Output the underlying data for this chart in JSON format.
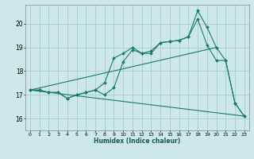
{
  "xlabel": "Humidex (Indice chaleur)",
  "bg_color": "#cce8e8",
  "grid_color": "#aacccc",
  "line_color": "#1a7a6e",
  "xlim": [
    -0.5,
    23.5
  ],
  "ylim": [
    15.5,
    20.8
  ],
  "xticks": [
    0,
    1,
    2,
    3,
    4,
    5,
    6,
    7,
    8,
    9,
    10,
    11,
    12,
    13,
    14,
    15,
    16,
    17,
    18,
    19,
    20,
    21,
    22,
    23
  ],
  "yticks": [
    16,
    17,
    18,
    19,
    20
  ],
  "series1_x": [
    0,
    1,
    2,
    3,
    4,
    5,
    6,
    7,
    8,
    9,
    10,
    11,
    12,
    13,
    14,
    15,
    16,
    17,
    18,
    19,
    20,
    21,
    22,
    23
  ],
  "series1_y": [
    17.2,
    17.2,
    17.1,
    17.1,
    16.85,
    17.0,
    17.1,
    17.2,
    17.5,
    18.55,
    18.75,
    19.0,
    18.75,
    18.85,
    19.2,
    19.25,
    19.3,
    19.45,
    20.55,
    19.85,
    19.0,
    18.45,
    16.65,
    16.1
  ],
  "series2_x": [
    0,
    1,
    2,
    3,
    4,
    5,
    6,
    7,
    8,
    9,
    10,
    11,
    12,
    13,
    14,
    15,
    16,
    17,
    18,
    19,
    20,
    21,
    22,
    23
  ],
  "series2_y": [
    17.2,
    17.2,
    17.1,
    17.1,
    16.85,
    17.0,
    17.1,
    17.2,
    17.0,
    17.3,
    18.4,
    18.9,
    18.75,
    18.75,
    19.2,
    19.25,
    19.3,
    19.45,
    20.2,
    19.1,
    18.45,
    18.45,
    16.65,
    16.1
  ],
  "series3_x": [
    0,
    23
  ],
  "series3_y": [
    17.2,
    16.1
  ],
  "series4_x": [
    0,
    20
  ],
  "series4_y": [
    17.2,
    19.0
  ]
}
